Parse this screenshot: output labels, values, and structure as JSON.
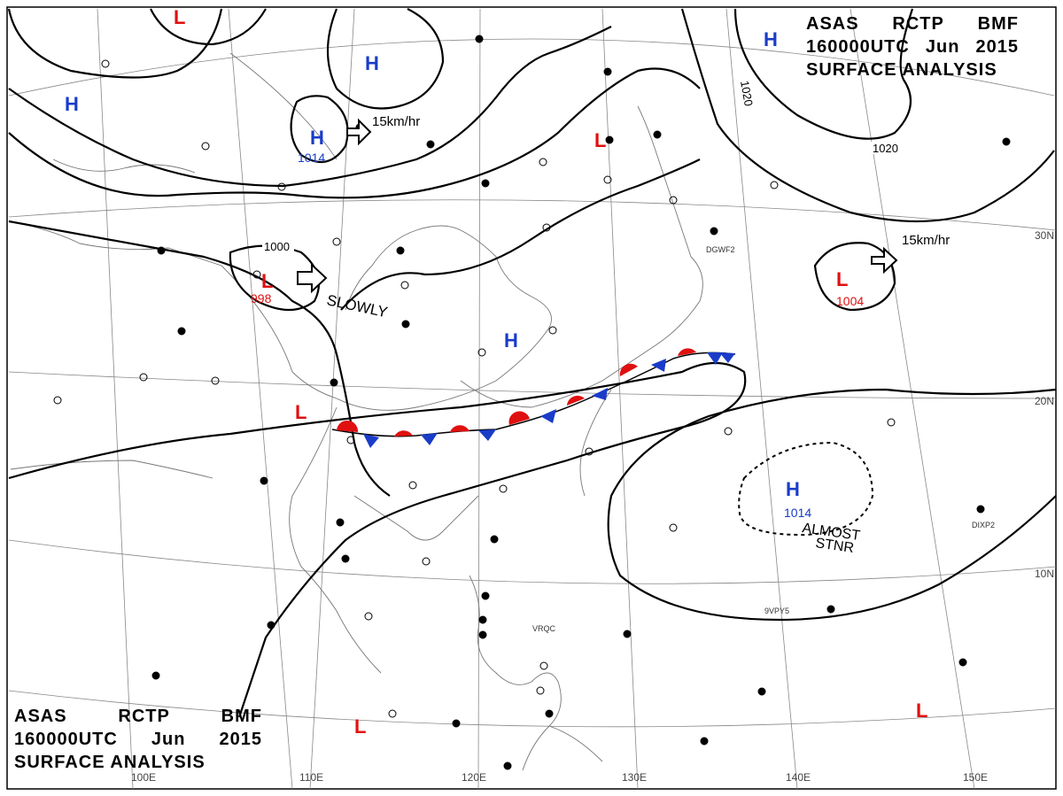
{
  "header": {
    "agency": "ASAS",
    "station": "RCTP",
    "unit": "BMF",
    "time": "160000UTC",
    "month": "Jun",
    "year": "2015",
    "product": "SURFACE ANALYSIS"
  },
  "longitude_labels": [
    "100E",
    "110E",
    "120E",
    "130E",
    "140E",
    "150E"
  ],
  "latitude_labels": [
    "30N",
    "20N",
    "10N"
  ],
  "isobar_labels": [
    "1000",
    "1020",
    "1020"
  ],
  "pressure_centers": [
    {
      "type": "H",
      "value": "1014",
      "color": "#1a3cc8"
    },
    {
      "type": "L",
      "value": "998",
      "color": "#e01010"
    },
    {
      "type": "L",
      "value": "1004",
      "color": "#e01010"
    },
    {
      "type": "H",
      "value": "1014",
      "color": "#1a3cc8"
    }
  ],
  "movement_labels": [
    "15km/hr",
    "SLOWLY",
    "15km/hr",
    "ALMOST",
    "STNR"
  ],
  "front": {
    "type": "stationary",
    "warm_color": "#e01010",
    "cold_color": "#1a3cc8"
  },
  "station_labels": [
    "DGWF2",
    "DIXP2",
    "VRQC",
    "9VPY5"
  ],
  "icons": {
    "high": "H-letter-blue",
    "low": "L-letter-red",
    "motion": "open-arrow"
  }
}
